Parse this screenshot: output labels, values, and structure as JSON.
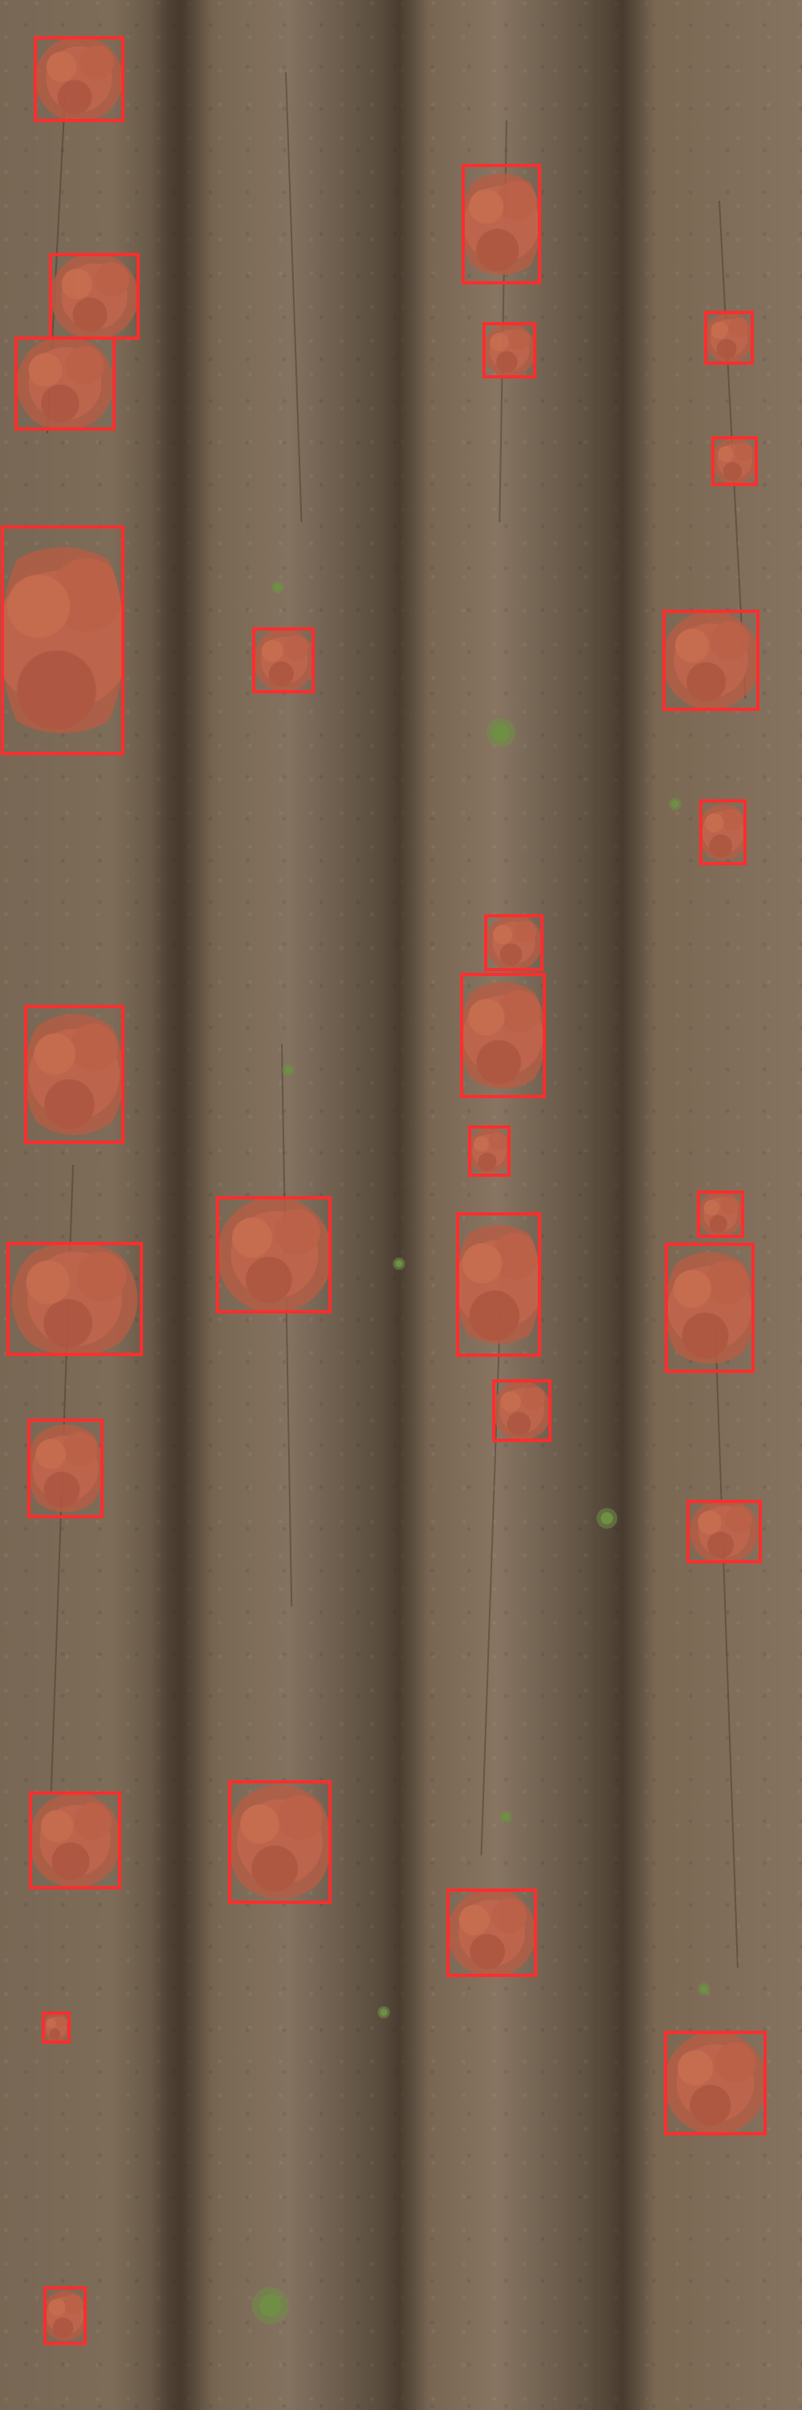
{
  "image": {
    "description_type": "aerial field image with highlighted plants",
    "bbox_color": "#ff2d2d",
    "plant_color": "#c96347"
  },
  "detections": [
    {
      "label": "plant"
    },
    {
      "label": "plant"
    },
    {
      "label": "plant"
    },
    {
      "label": "plant"
    },
    {
      "label": "plant"
    },
    {
      "label": "plant"
    },
    {
      "label": "plant"
    },
    {
      "label": "plant"
    },
    {
      "label": "plant"
    },
    {
      "label": "plant"
    },
    {
      "label": "plant"
    },
    {
      "label": "plant"
    },
    {
      "label": "plant"
    },
    {
      "label": "plant"
    },
    {
      "label": "plant"
    },
    {
      "label": "plant"
    },
    {
      "label": "plant"
    },
    {
      "label": "plant"
    },
    {
      "label": "plant"
    },
    {
      "label": "plant"
    },
    {
      "label": "plant"
    },
    {
      "label": "plant"
    },
    {
      "label": "plant"
    },
    {
      "label": "plant"
    },
    {
      "label": "plant"
    },
    {
      "label": "plant"
    },
    {
      "label": "plant"
    },
    {
      "label": "plant"
    },
    {
      "label": "plant"
    },
    {
      "label": "plant"
    },
    {
      "label": "plant"
    }
  ]
}
